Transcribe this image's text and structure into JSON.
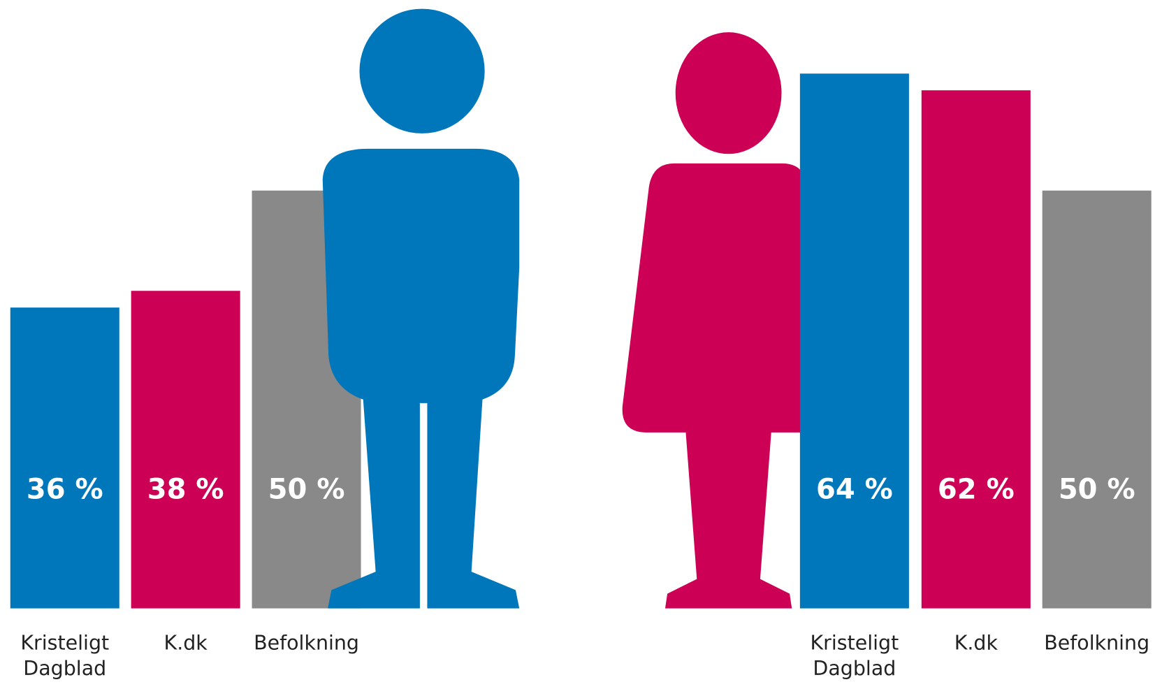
{
  "chart_data": [
    {
      "type": "bar",
      "categories": [
        "Kristeligt Dagblad",
        "K.dk",
        "Befolkning"
      ],
      "values": [
        36,
        38,
        50
      ],
      "value_labels": [
        "36 %",
        "38 %",
        "50 %"
      ],
      "colors": [
        "#0077bb",
        "#cc0055",
        "#898989"
      ]
    },
    {
      "type": "bar",
      "categories": [
        "Kristeligt Dagblad",
        "K.dk",
        "Befolkning"
      ],
      "values": [
        64,
        62,
        50
      ],
      "value_labels": [
        "64 %",
        "62 %",
        "50 %"
      ],
      "colors": [
        "#0077bb",
        "#cc0055",
        "#898989"
      ]
    }
  ]
}
